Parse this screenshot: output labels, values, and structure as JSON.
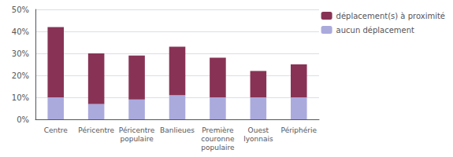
{
  "chart_data": {
    "type": "bar",
    "stacked": true,
    "categories": [
      "Centre",
      "Péricentre",
      "Péricentre\npopulaire",
      "Banlieues",
      "Première\ncouronne\npopulaire",
      "Ouest\nlyonnais",
      "Périphérie"
    ],
    "series": [
      {
        "name": "aucun déplacement",
        "color": "#aaaadd",
        "values": [
          10,
          7,
          9,
          11,
          10,
          10,
          10
        ]
      },
      {
        "name": "déplacement(s) à proximité",
        "color": "#883355",
        "values": [
          32,
          23,
          20,
          22,
          18,
          12,
          15
        ]
      }
    ],
    "ylim": [
      0,
      50
    ],
    "yticks": [
      {
        "value": 0,
        "label": "0%"
      },
      {
        "value": 10,
        "label": "10%"
      },
      {
        "value": 20,
        "label": "20%"
      },
      {
        "value": 30,
        "label": "30%"
      },
      {
        "value": 40,
        "label": "40%"
      },
      {
        "value": 50,
        "label": "50%"
      }
    ],
    "grid": true,
    "legend": "upper right"
  }
}
